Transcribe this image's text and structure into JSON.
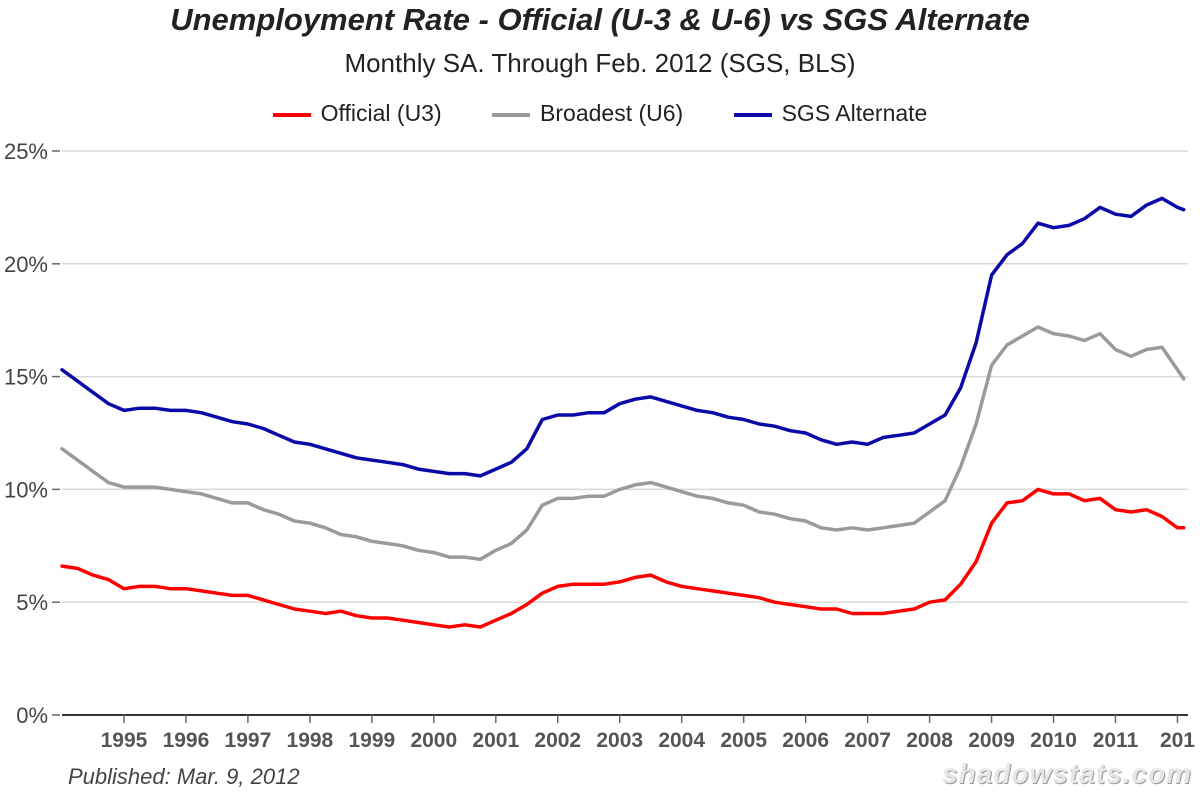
{
  "chart_data": {
    "type": "line",
    "title": "Unemployment Rate - Official (U-3 & U-6) vs SGS Alternate",
    "subtitle": "Monthly SA. Through Feb. 2012  (SGS, BLS)",
    "xlim": [
      1994.0,
      2012.17
    ],
    "ylim": [
      0,
      25
    ],
    "yticks": [
      0,
      5,
      10,
      15,
      20,
      25
    ],
    "ytick_labels": [
      "0%",
      "5%",
      "10%",
      "15%",
      "20%",
      "25%"
    ],
    "xtick_labels": [
      "1995",
      "1996",
      "1997",
      "1998",
      "1999",
      "2000",
      "2001",
      "2002",
      "2003",
      "2004",
      "2005",
      "2006",
      "2007",
      "2008",
      "2009",
      "2010",
      "2011",
      "201"
    ],
    "grid": true,
    "legend_position": "top",
    "series": [
      {
        "name": "Official (U3)",
        "color": "#ff0000",
        "x": [
          1994.0,
          1994.25,
          1994.5,
          1994.75,
          1995.0,
          1995.25,
          1995.5,
          1995.75,
          1996.0,
          1996.25,
          1996.5,
          1996.75,
          1997.0,
          1997.25,
          1997.5,
          1997.75,
          1998.0,
          1998.25,
          1998.5,
          1998.75,
          1999.0,
          1999.25,
          1999.5,
          1999.75,
          2000.0,
          2000.25,
          2000.5,
          2000.75,
          2001.0,
          2001.25,
          2001.5,
          2001.75,
          2002.0,
          2002.25,
          2002.5,
          2002.75,
          2003.0,
          2003.25,
          2003.5,
          2003.75,
          2004.0,
          2004.25,
          2004.5,
          2004.75,
          2005.0,
          2005.25,
          2005.5,
          2005.75,
          2006.0,
          2006.25,
          2006.5,
          2006.75,
          2007.0,
          2007.25,
          2007.5,
          2007.75,
          2008.0,
          2008.25,
          2008.5,
          2008.75,
          2009.0,
          2009.25,
          2009.5,
          2009.75,
          2010.0,
          2010.25,
          2010.5,
          2010.75,
          2011.0,
          2011.25,
          2011.5,
          2011.75,
          2012.0,
          2012.1
        ],
        "y": [
          6.6,
          6.5,
          6.2,
          6.0,
          5.6,
          5.7,
          5.7,
          5.6,
          5.6,
          5.5,
          5.4,
          5.3,
          5.3,
          5.1,
          4.9,
          4.7,
          4.6,
          4.5,
          4.6,
          4.4,
          4.3,
          4.3,
          4.2,
          4.1,
          4.0,
          3.9,
          4.0,
          3.9,
          4.2,
          4.5,
          4.9,
          5.4,
          5.7,
          5.8,
          5.8,
          5.8,
          5.9,
          6.1,
          6.2,
          5.9,
          5.7,
          5.6,
          5.5,
          5.4,
          5.3,
          5.2,
          5.0,
          4.9,
          4.8,
          4.7,
          4.7,
          4.5,
          4.5,
          4.5,
          4.6,
          4.7,
          5.0,
          5.1,
          5.8,
          6.8,
          8.5,
          9.4,
          9.5,
          10.0,
          9.8,
          9.8,
          9.5,
          9.6,
          9.1,
          9.0,
          9.1,
          8.8,
          8.3,
          8.3
        ]
      },
      {
        "name": "Broadest (U6)",
        "color": "#9a9a9a",
        "x": [
          1994.0,
          1994.25,
          1994.5,
          1994.75,
          1995.0,
          1995.25,
          1995.5,
          1995.75,
          1996.0,
          1996.25,
          1996.5,
          1996.75,
          1997.0,
          1997.25,
          1997.5,
          1997.75,
          1998.0,
          1998.25,
          1998.5,
          1998.75,
          1999.0,
          1999.25,
          1999.5,
          1999.75,
          2000.0,
          2000.25,
          2000.5,
          2000.75,
          2001.0,
          2001.25,
          2001.5,
          2001.75,
          2002.0,
          2002.25,
          2002.5,
          2002.75,
          2003.0,
          2003.25,
          2003.5,
          2003.75,
          2004.0,
          2004.25,
          2004.5,
          2004.75,
          2005.0,
          2005.25,
          2005.5,
          2005.75,
          2006.0,
          2006.25,
          2006.5,
          2006.75,
          2007.0,
          2007.25,
          2007.5,
          2007.75,
          2008.0,
          2008.25,
          2008.5,
          2008.75,
          2009.0,
          2009.25,
          2009.5,
          2009.75,
          2010.0,
          2010.25,
          2010.5,
          2010.75,
          2011.0,
          2011.25,
          2011.5,
          2011.75,
          2012.0,
          2012.1
        ],
        "y": [
          11.8,
          11.3,
          10.8,
          10.3,
          10.1,
          10.1,
          10.1,
          10.0,
          9.9,
          9.8,
          9.6,
          9.4,
          9.4,
          9.1,
          8.9,
          8.6,
          8.5,
          8.3,
          8.0,
          7.9,
          7.7,
          7.6,
          7.5,
          7.3,
          7.2,
          7.0,
          7.0,
          6.9,
          7.3,
          7.6,
          8.2,
          9.3,
          9.6,
          9.6,
          9.7,
          9.7,
          10.0,
          10.2,
          10.3,
          10.1,
          9.9,
          9.7,
          9.6,
          9.4,
          9.3,
          9.0,
          8.9,
          8.7,
          8.6,
          8.3,
          8.2,
          8.3,
          8.2,
          8.3,
          8.4,
          8.5,
          9.0,
          9.5,
          11.0,
          12.9,
          15.5,
          16.4,
          16.8,
          17.2,
          16.9,
          16.8,
          16.6,
          16.9,
          16.2,
          15.9,
          16.2,
          16.3,
          15.3,
          14.9
        ]
      },
      {
        "name": "SGS Alternate",
        "color": "#0a0aa8",
        "x": [
          1994.0,
          1994.25,
          1994.5,
          1994.75,
          1995.0,
          1995.25,
          1995.5,
          1995.75,
          1996.0,
          1996.25,
          1996.5,
          1996.75,
          1997.0,
          1997.25,
          1997.5,
          1997.75,
          1998.0,
          1998.25,
          1998.5,
          1998.75,
          1999.0,
          1999.25,
          1999.5,
          1999.75,
          2000.0,
          2000.25,
          2000.5,
          2000.75,
          2001.0,
          2001.25,
          2001.5,
          2001.75,
          2002.0,
          2002.25,
          2002.5,
          2002.75,
          2003.0,
          2003.25,
          2003.5,
          2003.75,
          2004.0,
          2004.25,
          2004.5,
          2004.75,
          2005.0,
          2005.25,
          2005.5,
          2005.75,
          2006.0,
          2006.25,
          2006.5,
          2006.75,
          2007.0,
          2007.25,
          2007.5,
          2007.75,
          2008.0,
          2008.25,
          2008.5,
          2008.75,
          2009.0,
          2009.25,
          2009.5,
          2009.75,
          2010.0,
          2010.25,
          2010.5,
          2010.75,
          2011.0,
          2011.25,
          2011.5,
          2011.75,
          2012.0,
          2012.1
        ],
        "y": [
          15.3,
          14.8,
          14.3,
          13.8,
          13.5,
          13.6,
          13.6,
          13.5,
          13.5,
          13.4,
          13.2,
          13.0,
          12.9,
          12.7,
          12.4,
          12.1,
          12.0,
          11.8,
          11.6,
          11.4,
          11.3,
          11.2,
          11.1,
          10.9,
          10.8,
          10.7,
          10.7,
          10.6,
          10.9,
          11.2,
          11.8,
          13.1,
          13.3,
          13.3,
          13.4,
          13.4,
          13.8,
          14.0,
          14.1,
          13.9,
          13.7,
          13.5,
          13.4,
          13.2,
          13.1,
          12.9,
          12.8,
          12.6,
          12.5,
          12.2,
          12.0,
          12.1,
          12.0,
          12.3,
          12.4,
          12.5,
          12.9,
          13.3,
          14.5,
          16.5,
          19.5,
          20.4,
          20.9,
          21.8,
          21.6,
          21.7,
          22.0,
          22.5,
          22.2,
          22.1,
          22.6,
          22.9,
          22.5,
          22.4
        ]
      }
    ]
  },
  "footer": {
    "published": "Published: Mar. 9, 2012",
    "credit": "shadowstats.com"
  }
}
